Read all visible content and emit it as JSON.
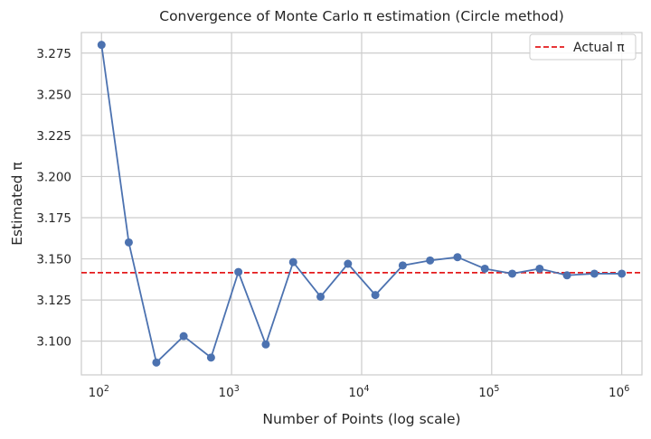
{
  "chart_data": {
    "type": "line",
    "title": "Convergence of Monte Carlo π estimation (Circle method)",
    "xlabel": "Number of Points (log scale)",
    "ylabel": "Estimated π",
    "xscale": "log",
    "xlim": [
      70,
      1430000
    ],
    "ylim": [
      3.0795,
      3.2875
    ],
    "grid": true,
    "legend_position": "top-right",
    "x_ticks": [
      {
        "value": 100,
        "base": "10",
        "exp": "2"
      },
      {
        "value": 1000,
        "base": "10",
        "exp": "3"
      },
      {
        "value": 10000,
        "base": "10",
        "exp": "4"
      },
      {
        "value": 100000,
        "base": "10",
        "exp": "5"
      },
      {
        "value": 1000000,
        "base": "10",
        "exp": "6"
      }
    ],
    "y_ticks": [
      "3.100",
      "3.125",
      "3.150",
      "3.175",
      "3.200",
      "3.225",
      "3.250",
      "3.275"
    ],
    "series": [
      {
        "color": "#4c72b0",
        "marker": "circle",
        "x": [
          100,
          162,
          264,
          428,
          695,
          1128,
          1832,
          2976,
          4833,
          7848,
          12743,
          20691,
          33598,
          54556,
          88587,
          143845,
          233572,
          379269,
          615848,
          1000000
        ],
        "y": [
          3.28,
          3.16,
          3.087,
          3.103,
          3.09,
          3.142,
          3.098,
          3.148,
          3.127,
          3.147,
          3.128,
          3.146,
          3.149,
          3.151,
          3.144,
          3.141,
          3.144,
          3.14,
          3.141,
          3.141
        ]
      }
    ],
    "reference_line": {
      "name": "Actual π",
      "value": 3.14159,
      "color": "#e41a1c",
      "style": "dashed"
    }
  }
}
